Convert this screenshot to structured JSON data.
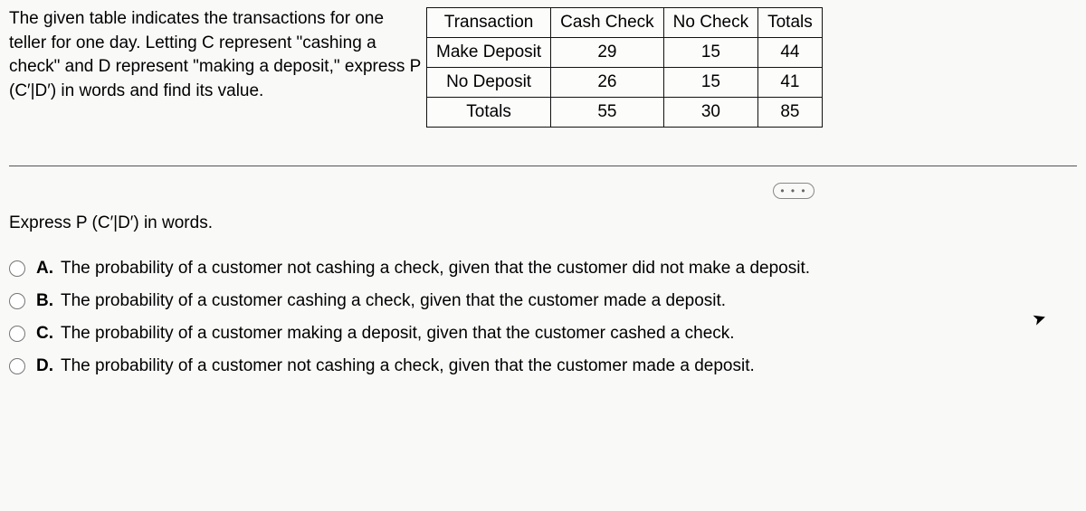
{
  "problem": {
    "text_line1": "The given table indicates the transactions for one",
    "text_line2": "teller for one day. Letting C represent \"cashing",
    "text_line3": "a check\" and D represent \"making a deposit,\"",
    "text_line4": "express  P (C′|D′)  in words and find its value."
  },
  "table": {
    "headers": [
      "Transaction",
      "Cash Check",
      "No Check",
      "Totals"
    ],
    "rows": [
      [
        "Make Deposit",
        "29",
        "15",
        "44"
      ],
      [
        "No Deposit",
        "26",
        "15",
        "41"
      ],
      [
        "Totals",
        "55",
        "30",
        "85"
      ]
    ]
  },
  "question": "Express P (C′|D′)  in words.",
  "options": {
    "A": "The probability of a customer not cashing a check, given that the customer did not make a deposit.",
    "B": "The probability of a customer cashing a check, given that the customer made a deposit.",
    "C": "The probability of a customer making a deposit, given that the customer cashed a check.",
    "D": "The probability of a customer not cashing a check, given that the customer made a deposit."
  },
  "labels": {
    "A": "A.",
    "B": "B.",
    "C": "C.",
    "D": "D."
  },
  "ellipsis": "• • •"
}
